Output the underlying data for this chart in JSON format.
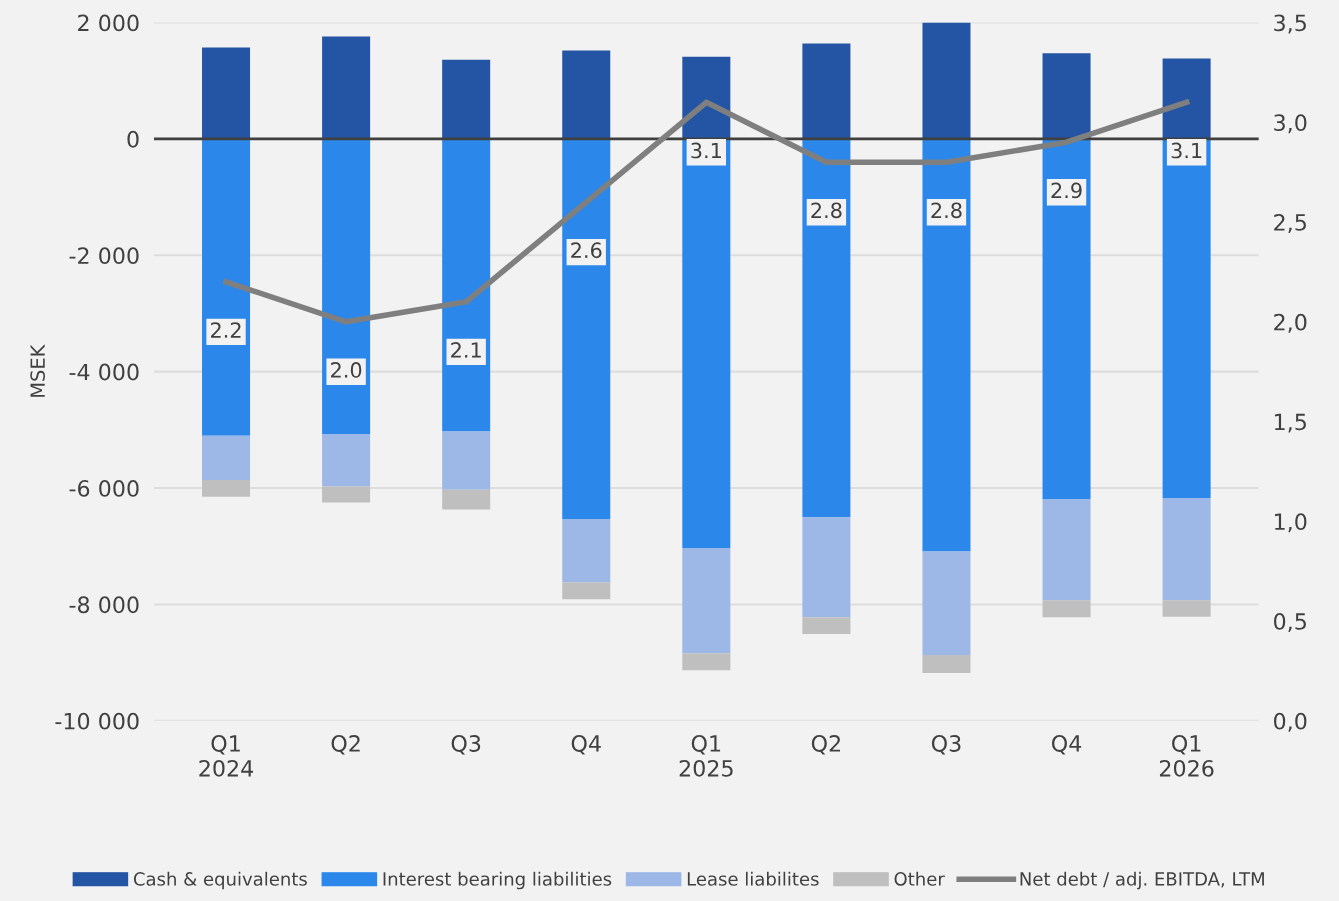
{
  "chart_data": {
    "type": "bar",
    "stacked": true,
    "ylabel": "MSEK",
    "categories": [
      "Q1\n2024",
      "Q2",
      "Q3",
      "Q4",
      "Q1\n2025",
      "Q2",
      "Q3",
      "Q4",
      "Q1\n2026"
    ],
    "series": [
      {
        "name": "Cash & equivalents",
        "color": "#2455a4",
        "values": [
          1570,
          1760,
          1360,
          1520,
          1410,
          1640,
          2000,
          1470,
          1380
        ]
      },
      {
        "name": "Interest bearing liabilities",
        "color": "#2b88ea",
        "values": [
          -5100,
          -5070,
          -5030,
          -6530,
          -7030,
          -6500,
          -7090,
          -6190,
          -6170
        ]
      },
      {
        "name": "Lease liabilites",
        "color": "#9db8e6",
        "values": [
          -760,
          -900,
          -1000,
          -1090,
          -1810,
          -1720,
          -1780,
          -1740,
          -1760
        ]
      },
      {
        "name": "Other",
        "color": "#bfbfbf",
        "values": [
          -290,
          -280,
          -340,
          -290,
          -290,
          -290,
          -310,
          -290,
          -280
        ]
      },
      {
        "name": "Net debt / adj. EBITDA, LTM",
        "type": "line",
        "axis": "y2",
        "color": "#7f7f7f",
        "values": [
          2.2,
          2.0,
          2.1,
          2.6,
          3.1,
          2.8,
          2.8,
          2.9,
          3.1
        ],
        "value_labels": [
          "2.2",
          "2.0",
          "2.1",
          "2.6",
          "3.1",
          "2.8",
          "2.8",
          "2.9",
          "3.1"
        ]
      }
    ],
    "ylim": [
      -10000,
      2000
    ],
    "yticks": [
      {
        "value": -10000,
        "label": "-10 000"
      },
      {
        "value": -8000,
        "label": "-8 000"
      },
      {
        "value": -6000,
        "label": "-6 000"
      },
      {
        "value": -4000,
        "label": "-4 000"
      },
      {
        "value": -2000,
        "label": "-2 000"
      },
      0,
      {
        "value": 2000,
        "label": "2 000"
      }
    ],
    "y2lim": [
      0,
      3.5
    ],
    "y2ticks": [
      {
        "value": 0,
        "label": "0,0"
      },
      {
        "value": 0.5,
        "label": "0,5"
      },
      {
        "value": 1,
        "label": "1,0"
      },
      {
        "value": 1.5,
        "label": "1,5"
      },
      {
        "value": 2,
        "label": "2,0"
      },
      {
        "value": 2.5,
        "label": "2,5"
      },
      {
        "value": 3,
        "label": "3,0"
      },
      {
        "value": 3.5,
        "label": "3,5"
      }
    ],
    "ref_lines": [
      {
        "axis": "y",
        "value": 0,
        "color": "#404040"
      }
    ],
    "grid": "y",
    "legend": "bottom"
  }
}
